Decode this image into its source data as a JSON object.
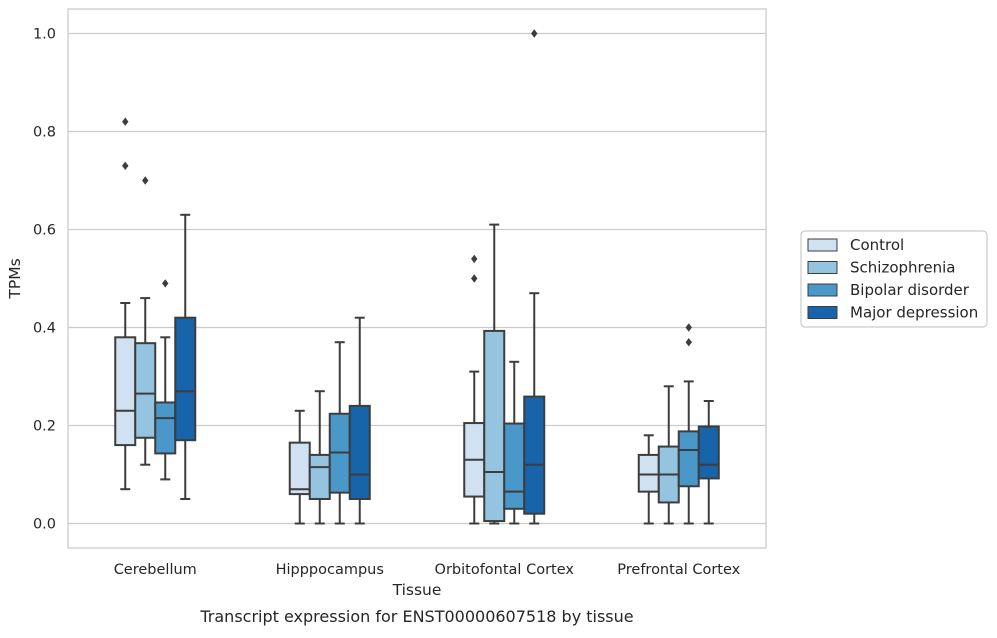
{
  "chart_data": {
    "type": "box",
    "title": "",
    "caption": "Transcript expression for ENST00000607518 by tissue",
    "xlabel": "Tissue",
    "ylabel": "TPMs",
    "ylim": [
      -0.05,
      1.05
    ],
    "yticks": [
      0.0,
      0.2,
      0.4,
      0.6,
      0.8,
      1.0
    ],
    "ytick_labels": [
      "0.0",
      "0.2",
      "0.4",
      "0.6",
      "0.8",
      "1.0"
    ],
    "grid": "horizontal",
    "legend_position": "right",
    "categories": [
      "Cerebellum",
      "Hipppocampus",
      "Orbitofontal Cortex",
      "Prefrontal Cortex"
    ],
    "series": [
      {
        "name": "Control",
        "color": "#d0e1f2",
        "boxes": [
          {
            "whisker_low": 0.07,
            "q1": 0.16,
            "median": 0.23,
            "q3": 0.38,
            "whisker_high": 0.45,
            "outliers": [
              0.73,
              0.82
            ]
          },
          {
            "whisker_low": 0.0,
            "q1": 0.06,
            "median": 0.07,
            "q3": 0.165,
            "whisker_high": 0.23,
            "outliers": []
          },
          {
            "whisker_low": 0.0,
            "q1": 0.055,
            "median": 0.13,
            "q3": 0.205,
            "whisker_high": 0.31,
            "outliers": [
              0.5,
              0.54
            ]
          },
          {
            "whisker_low": 0.0,
            "q1": 0.065,
            "median": 0.1,
            "q3": 0.14,
            "whisker_high": 0.18,
            "outliers": []
          }
        ]
      },
      {
        "name": "Schizophrenia",
        "color": "#94c4df",
        "boxes": [
          {
            "whisker_low": 0.12,
            "q1": 0.175,
            "median": 0.265,
            "q3": 0.368,
            "whisker_high": 0.46,
            "outliers": [
              0.7
            ]
          },
          {
            "whisker_low": 0.0,
            "q1": 0.05,
            "median": 0.115,
            "q3": 0.14,
            "whisker_high": 0.27,
            "outliers": []
          },
          {
            "whisker_low": 0.0,
            "q1": 0.005,
            "median": 0.105,
            "q3": 0.393,
            "whisker_high": 0.61,
            "outliers": []
          },
          {
            "whisker_low": 0.0,
            "q1": 0.043,
            "median": 0.1,
            "q3": 0.157,
            "whisker_high": 0.28,
            "outliers": []
          }
        ]
      },
      {
        "name": "Bipolar disorder",
        "color": "#4a98c9",
        "boxes": [
          {
            "whisker_low": 0.09,
            "q1": 0.143,
            "median": 0.215,
            "q3": 0.247,
            "whisker_high": 0.38,
            "outliers": [
              0.49
            ]
          },
          {
            "whisker_low": 0.0,
            "q1": 0.063,
            "median": 0.145,
            "q3": 0.224,
            "whisker_high": 0.37,
            "outliers": []
          },
          {
            "whisker_low": 0.0,
            "q1": 0.03,
            "median": 0.065,
            "q3": 0.204,
            "whisker_high": 0.33,
            "outliers": []
          },
          {
            "whisker_low": 0.0,
            "q1": 0.076,
            "median": 0.15,
            "q3": 0.188,
            "whisker_high": 0.29,
            "outliers": [
              0.37,
              0.4
            ]
          }
        ]
      },
      {
        "name": "Major depression",
        "color": "#1764ab",
        "boxes": [
          {
            "whisker_low": 0.05,
            "q1": 0.17,
            "median": 0.27,
            "q3": 0.42,
            "whisker_high": 0.63,
            "outliers": []
          },
          {
            "whisker_low": 0.0,
            "q1": 0.05,
            "median": 0.1,
            "q3": 0.24,
            "whisker_high": 0.42,
            "outliers": []
          },
          {
            "whisker_low": 0.0,
            "q1": 0.02,
            "median": 0.12,
            "q3": 0.259,
            "whisker_high": 0.47,
            "outliers": [
              1.0
            ]
          },
          {
            "whisker_low": 0.0,
            "q1": 0.092,
            "median": 0.12,
            "q3": 0.198,
            "whisker_high": 0.25,
            "outliers": []
          }
        ]
      }
    ]
  }
}
